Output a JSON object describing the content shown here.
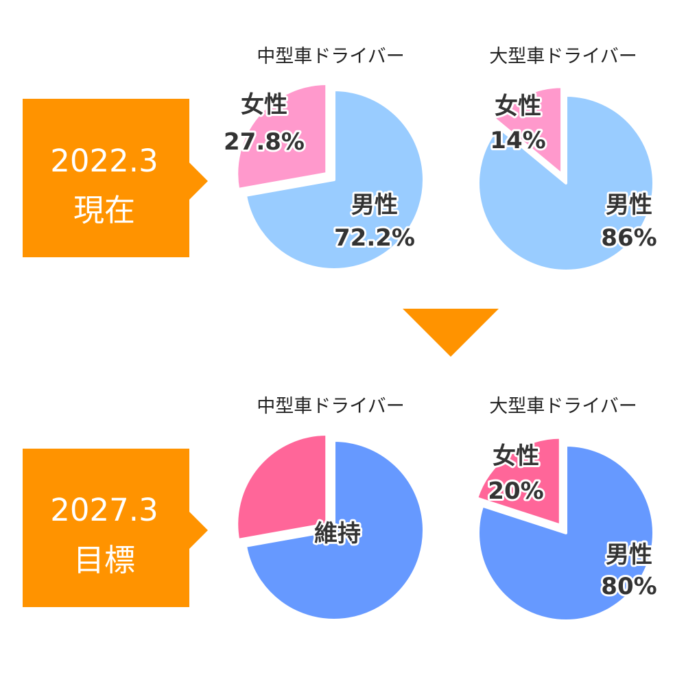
{
  "colors": {
    "badge": "#ff9300",
    "current_male": "#99ccff",
    "current_female": "#ff99cc",
    "target_male": "#6699ff",
    "target_female": "#ff6699",
    "outline": "#ffffff"
  },
  "rows": [
    {
      "key": "current",
      "period": "2022.3",
      "status": "現在"
    },
    {
      "key": "target",
      "period": "2027.3",
      "status": "目標"
    }
  ],
  "chart_data": [
    {
      "type": "pie",
      "row": "current",
      "title": "中型車ドライバー",
      "slices": [
        {
          "label": "女性",
          "value_text": "27.8%",
          "value": 27.8,
          "exploded": true
        },
        {
          "label": "男性",
          "value_text": "72.2%",
          "value": 72.2,
          "exploded": false
        }
      ]
    },
    {
      "type": "pie",
      "row": "current",
      "title": "大型車ドライバー",
      "slices": [
        {
          "label": "女性",
          "value_text": "14%",
          "value": 14,
          "exploded": true
        },
        {
          "label": "男性",
          "value_text": "86%",
          "value": 86,
          "exploded": false
        }
      ]
    },
    {
      "type": "pie",
      "row": "target",
      "title": "中型車ドライバー",
      "center_label": "維持",
      "slices": [
        {
          "label": "",
          "value_text": "",
          "value": 27.8,
          "exploded": true
        },
        {
          "label": "",
          "value_text": "",
          "value": 72.2,
          "exploded": false
        }
      ]
    },
    {
      "type": "pie",
      "row": "target",
      "title": "大型車ドライバー",
      "slices": [
        {
          "label": "女性",
          "value_text": "20%",
          "value": 20,
          "exploded": true
        },
        {
          "label": "男性",
          "value_text": "80%",
          "value": 80,
          "exploded": false
        }
      ]
    }
  ]
}
